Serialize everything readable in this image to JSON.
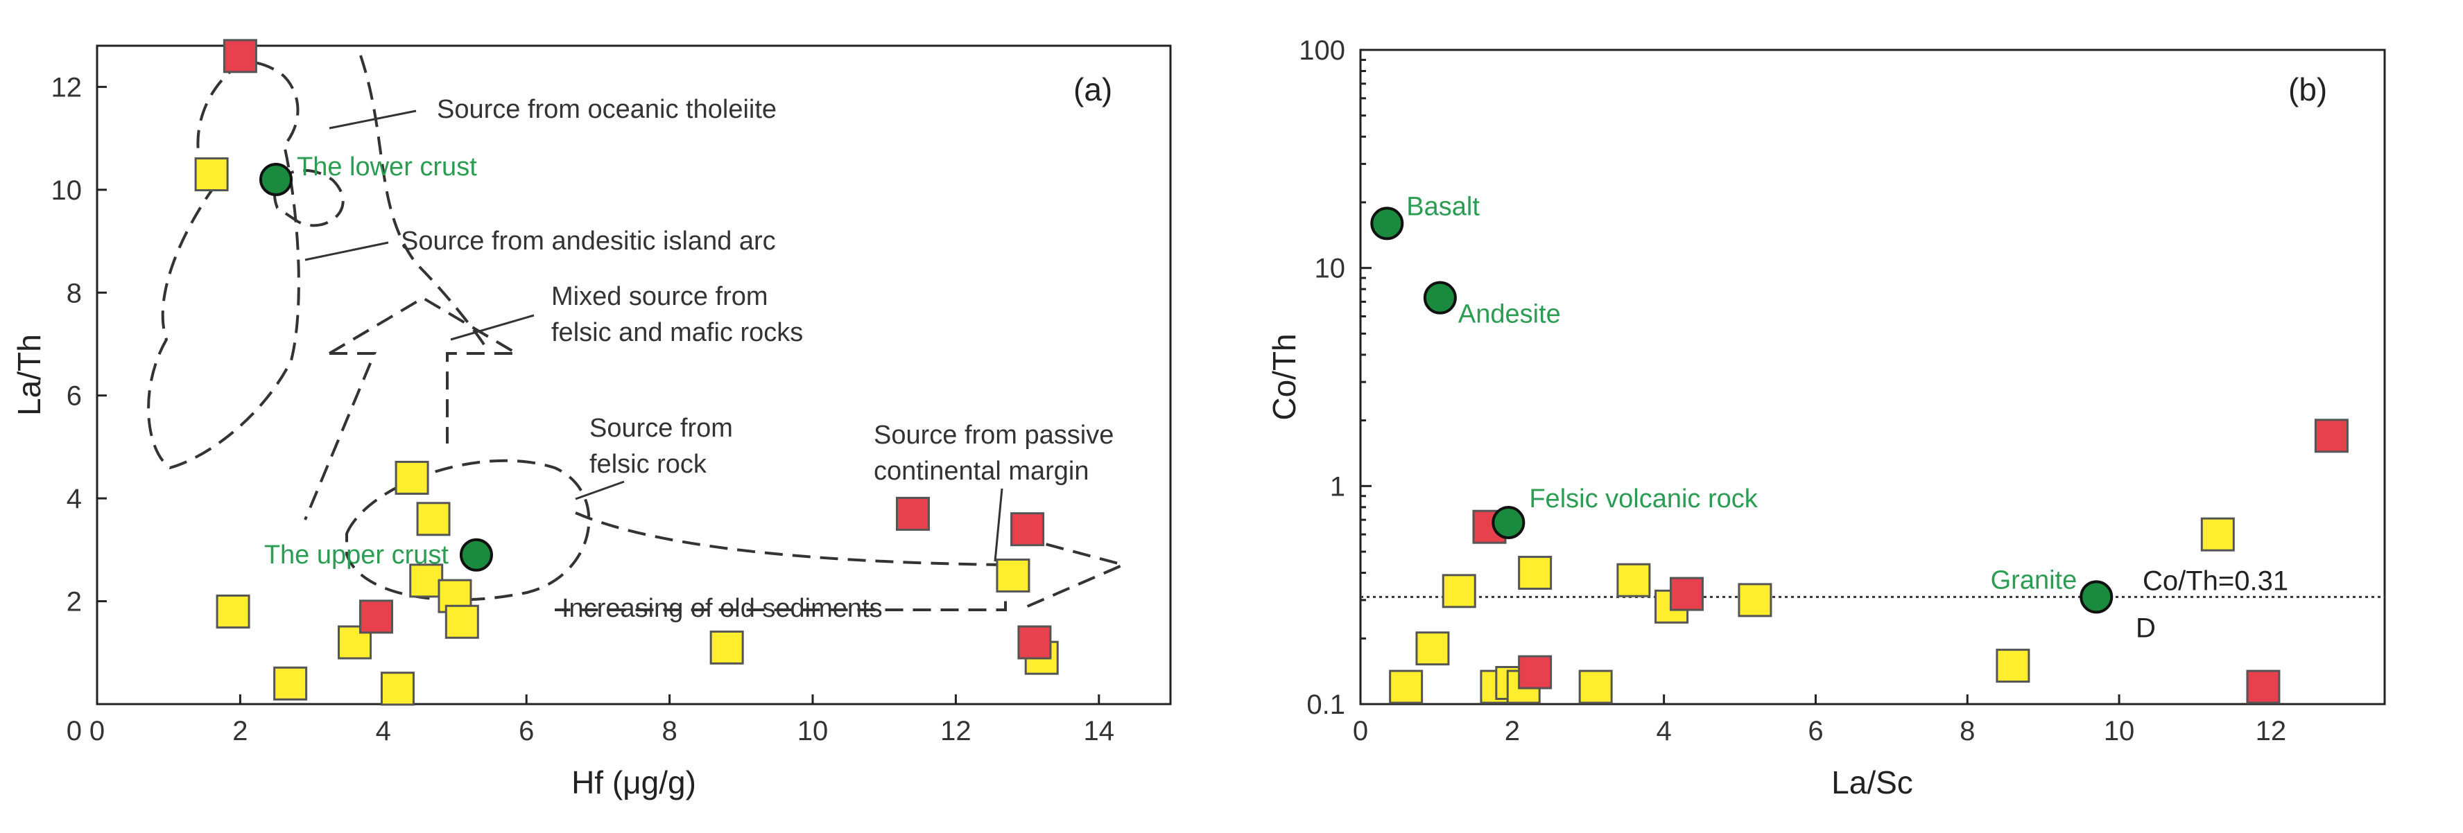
{
  "chart_data": [
    {
      "type": "scatter",
      "panel_label": "(a)",
      "xlabel": "Hf (μg/g)",
      "ylabel": "La/Th",
      "xlim": [
        0,
        15
      ],
      "ylim": [
        0,
        12.8
      ],
      "x_ticks": [
        0,
        2,
        4,
        6,
        8,
        10,
        12,
        14
      ],
      "y_ticks": [
        2,
        4,
        6,
        8,
        10,
        12
      ],
      "grid": false,
      "series": [
        {
          "marker": "square",
          "color": "#ffee2e",
          "points": [
            [
              1.6,
              10.3
            ],
            [
              1.9,
              1.8
            ],
            [
              2.7,
              0.4
            ],
            [
              3.6,
              1.2
            ],
            [
              4.2,
              0.3
            ],
            [
              4.4,
              4.4
            ],
            [
              4.7,
              3.6
            ],
            [
              4.6,
              2.4
            ],
            [
              5.0,
              2.1
            ],
            [
              5.1,
              1.6
            ],
            [
              8.8,
              1.1
            ],
            [
              12.8,
              2.5
            ],
            [
              13.2,
              0.9
            ]
          ]
        },
        {
          "marker": "square",
          "color": "#e8414e",
          "points": [
            [
              2.0,
              12.6
            ],
            [
              3.9,
              1.7
            ],
            [
              11.4,
              3.7
            ],
            [
              13.0,
              3.4
            ],
            [
              13.1,
              1.2
            ]
          ]
        }
      ],
      "reference_points": [
        {
          "label": "The lower crust",
          "x": 2.5,
          "y": 10.2
        },
        {
          "label": "The upper crust",
          "x": 5.3,
          "y": 2.9
        }
      ],
      "annotations": [
        "Source from oceanic tholeiite",
        "Source from andesitic island arc",
        "Mixed source from",
        "felsic and mafic rocks",
        "Source from",
        "felsic rock",
        "Source from passive",
        "continental margin",
        "Increasing of old sediments"
      ]
    },
    {
      "type": "scatter",
      "panel_label": "(b)",
      "xlabel": "La/Sc",
      "ylabel": "Co/Th",
      "xlim": [
        0,
        13.5
      ],
      "ylim": [
        0.1,
        100
      ],
      "y_scale": "log",
      "x_ticks": [
        0,
        2,
        4,
        6,
        8,
        10,
        12
      ],
      "y_ticks": [
        0.1,
        1,
        10,
        100
      ],
      "y_tick_labels": [
        "0.1",
        "1",
        "10",
        "100"
      ],
      "grid": false,
      "series": [
        {
          "marker": "square",
          "color": "#ffee2e",
          "points": [
            [
              0.6,
              0.12
            ],
            [
              0.95,
              0.18
            ],
            [
              1.3,
              0.33
            ],
            [
              1.8,
              0.12
            ],
            [
              2.0,
              0.125
            ],
            [
              2.15,
              0.12
            ],
            [
              2.3,
              0.4
            ],
            [
              3.1,
              0.12
            ],
            [
              3.6,
              0.37
            ],
            [
              4.1,
              0.28
            ],
            [
              5.2,
              0.3
            ],
            [
              8.6,
              0.15
            ],
            [
              11.3,
              0.6
            ]
          ]
        },
        {
          "marker": "square",
          "color": "#e8414e",
          "points": [
            [
              1.7,
              0.65
            ],
            [
              2.3,
              0.14
            ],
            [
              4.3,
              0.32
            ],
            [
              11.9,
              0.12
            ],
            [
              12.8,
              1.7
            ]
          ]
        }
      ],
      "reference_points": [
        {
          "label": "Basalt",
          "x": 0.35,
          "y": 16
        },
        {
          "label": "Andesite",
          "x": 1.05,
          "y": 7.3
        },
        {
          "label": "Felsic volcanic rock",
          "x": 1.95,
          "y": 0.68
        },
        {
          "label": "Granite",
          "x": 9.7,
          "y": 0.31
        }
      ],
      "reference_line": {
        "y": 0.31,
        "label": "Co/Th=0.31"
      },
      "extra_label": "D"
    }
  ]
}
